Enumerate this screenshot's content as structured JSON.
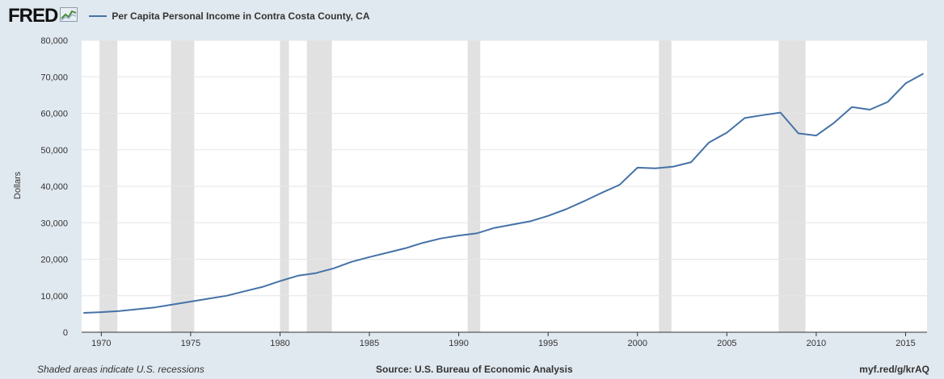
{
  "header": {
    "logo_text": "FRED",
    "legend_label": "Per Capita Personal Income in Contra Costa County, CA"
  },
  "footer": {
    "left": "Shaded areas indicate U.S. recessions",
    "center": "Source: U.S. Bureau of Economic Analysis",
    "right": "myf.red/g/krAQ"
  },
  "colors": {
    "line": "#4572a7",
    "recession": "#e1e1e1",
    "grid": "#e6e6e6",
    "background": "#e1e9f0"
  },
  "chart_data": {
    "type": "line",
    "title": "Per Capita Personal Income in Contra Costa County, CA",
    "xlabel": "",
    "ylabel": "Dollars",
    "xlim": [
      1968.9,
      2016.2
    ],
    "ylim": [
      0,
      80000
    ],
    "grid": true,
    "x_ticks": [
      1970,
      1975,
      1980,
      1985,
      1990,
      1995,
      2000,
      2005,
      2010,
      2015
    ],
    "y_ticks": [
      0,
      10000,
      20000,
      30000,
      40000,
      50000,
      60000,
      70000,
      80000
    ],
    "y_tick_labels": [
      "0",
      "10,000",
      "20,000",
      "30,000",
      "40,000",
      "50,000",
      "60,000",
      "70,000",
      "80,000"
    ],
    "recessions": [
      [
        1969.9,
        1970.9
      ],
      [
        1973.9,
        1975.2
      ],
      [
        1980.0,
        1980.5
      ],
      [
        1981.5,
        1982.9
      ],
      [
        1990.5,
        1991.2
      ],
      [
        2001.2,
        2001.9
      ],
      [
        2007.9,
        2009.4
      ]
    ],
    "series": [
      {
        "name": "Per Capita Personal Income in Contra Costa County, CA",
        "x": [
          1969,
          1970,
          1971,
          1972,
          1973,
          1974,
          1975,
          1976,
          1977,
          1978,
          1979,
          1980,
          1981,
          1982,
          1983,
          1984,
          1985,
          1986,
          1987,
          1988,
          1989,
          1990,
          1991,
          1992,
          1993,
          1994,
          1995,
          1996,
          1997,
          1998,
          1999,
          2000,
          2001,
          2002,
          2003,
          2004,
          2005,
          2006,
          2007,
          2008,
          2009,
          2010,
          2011,
          2012,
          2013,
          2014,
          2015,
          2016
        ],
        "values": [
          5300,
          5500,
          5800,
          6300,
          6800,
          7600,
          8400,
          9200,
          10000,
          11200,
          12400,
          14000,
          15500,
          16200,
          17500,
          19300,
          20600,
          21800,
          23000,
          24500,
          25700,
          26500,
          27100,
          28600,
          29500,
          30400,
          31900,
          33700,
          35900,
          38200,
          40400,
          45100,
          44900,
          45400,
          46600,
          52000,
          54700,
          58700,
          59500,
          60200,
          54500,
          53900,
          57400,
          61700,
          61000,
          63100,
          68200,
          70900
        ]
      }
    ]
  }
}
